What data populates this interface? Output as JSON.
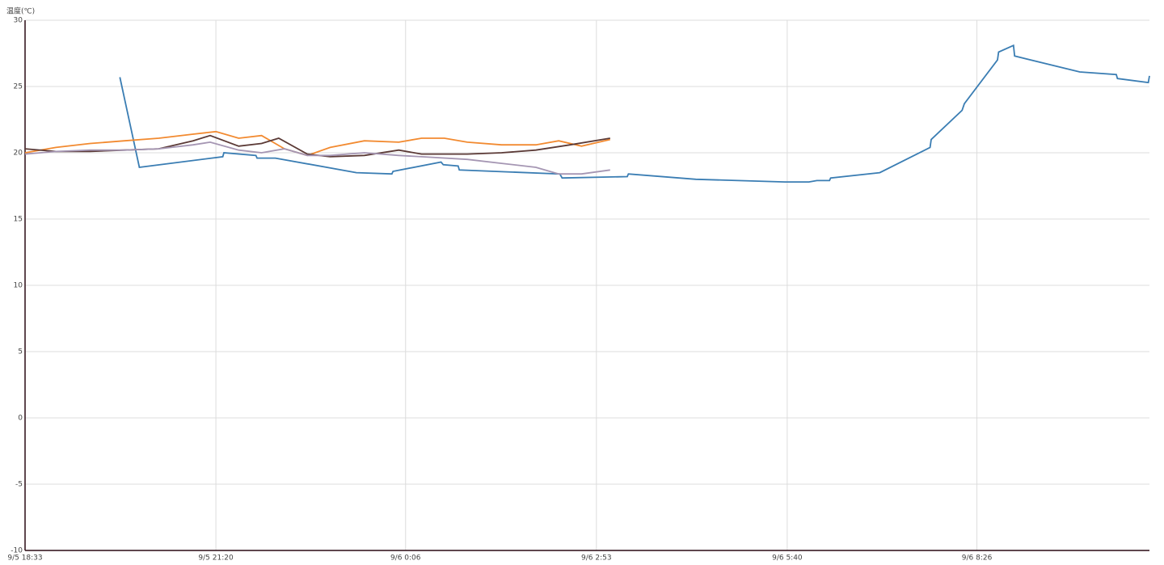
{
  "chart_data": {
    "type": "line",
    "y_label": "温度(℃)",
    "ylim": [
      -10,
      30
    ],
    "yticks": [
      -10,
      -5,
      0,
      5,
      10,
      15,
      20,
      25,
      30
    ],
    "xlim": [
      "9/5 18:33",
      "9/6 10:57"
    ],
    "xticks": [
      "9/5 18:33",
      "9/5 21:20",
      "9/6 0:06",
      "9/6 2:53",
      "9/6 5:40",
      "9/6 8:26"
    ],
    "grid": true,
    "series": [
      {
        "color": "#3a7db3",
        "x": [
          "9/5 19:56",
          "9/5 20:13",
          "9/5 21:26",
          "9/5 21:27",
          "9/5 21:55",
          "9/5 21:56",
          "9/5 22:12",
          "9/5 23:23",
          "9/5 23:54",
          "9/5 23:55",
          "9/6 0:37",
          "9/6 0:39",
          "9/6 0:52",
          "9/6 0:53",
          "9/6 2:21",
          "9/6 2:23",
          "9/6 3:20",
          "9/6 3:21",
          "9/6 4:20",
          "9/6 5:38",
          "9/6 5:59",
          "9/6 6:06",
          "9/6 6:17",
          "9/6 6:18",
          "9/6 7:01",
          "9/6 7:45",
          "9/6 7:46",
          "9/6 8:13",
          "9/6 8:15",
          "9/6 8:44",
          "9/6 8:45",
          "9/6 8:58",
          "9/6 8:59",
          "9/6 9:56",
          "9/6 10:28",
          "9/6 10:29",
          "9/6 10:56",
          "9/6 10:57"
        ],
        "values": [
          25.7,
          18.9,
          19.7,
          20.0,
          19.8,
          19.6,
          19.6,
          18.5,
          18.4,
          18.6,
          19.3,
          19.1,
          19.0,
          18.7,
          18.4,
          18.1,
          18.2,
          18.4,
          18.0,
          17.8,
          17.8,
          17.9,
          17.9,
          18.1,
          18.5,
          20.4,
          21.0,
          23.2,
          23.7,
          27.0,
          27.6,
          28.1,
          27.3,
          26.1,
          25.9,
          25.6,
          25.3,
          25.8
        ]
      },
      {
        "color": "#f28a30",
        "x": [
          "9/5 18:33",
          "9/5 19:00",
          "9/5 19:30",
          "9/5 20:00",
          "9/5 20:30",
          "9/5 21:00",
          "9/5 21:20",
          "9/5 21:40",
          "9/5 22:00",
          "9/5 22:20",
          "9/5 22:40",
          "9/5 23:00",
          "9/5 23:30",
          "9/6 0:00",
          "9/6 0:20",
          "9/6 0:40",
          "9/6 1:00",
          "9/6 1:30",
          "9/6 2:00",
          "9/6 2:20",
          "9/6 2:40",
          "9/6 3:05"
        ],
        "values": [
          20.0,
          20.4,
          20.7,
          20.9,
          21.1,
          21.4,
          21.6,
          21.1,
          21.3,
          20.3,
          19.8,
          20.4,
          20.9,
          20.8,
          21.1,
          21.1,
          20.8,
          20.6,
          20.6,
          20.9,
          20.5,
          21.0
        ]
      },
      {
        "color": "#5b3a36",
        "x": [
          "9/5 18:33",
          "9/5 19:00",
          "9/5 19:30",
          "9/5 20:00",
          "9/5 20:30",
          "9/5 21:00",
          "9/5 21:15",
          "9/5 21:40",
          "9/5 22:00",
          "9/5 22:15",
          "9/5 22:40",
          "9/5 23:00",
          "9/5 23:30",
          "9/6 0:00",
          "9/6 0:20",
          "9/6 1:00",
          "9/6 1:30",
          "9/6 2:00",
          "9/6 2:30",
          "9/6 3:05"
        ],
        "values": [
          20.3,
          20.1,
          20.1,
          20.2,
          20.3,
          20.9,
          21.3,
          20.5,
          20.7,
          21.1,
          19.9,
          19.7,
          19.8,
          20.2,
          19.9,
          19.9,
          20.0,
          20.2,
          20.6,
          21.1
        ]
      },
      {
        "color": "#a596b3",
        "x": [
          "9/5 18:33",
          "9/5 19:00",
          "9/5 19:30",
          "9/5 20:00",
          "9/5 20:30",
          "9/5 21:00",
          "9/5 21:15",
          "9/5 21:40",
          "9/5 22:00",
          "9/5 22:20",
          "9/5 22:40",
          "9/5 23:00",
          "9/5 23:30",
          "9/6 0:00",
          "9/6 0:20",
          "9/6 1:00",
          "9/6 1:30",
          "9/6 2:00",
          "9/6 2:20",
          "9/6 2:40",
          "9/6 3:05"
        ],
        "values": [
          19.9,
          20.1,
          20.2,
          20.2,
          20.3,
          20.6,
          20.8,
          20.2,
          20.0,
          20.3,
          19.8,
          19.8,
          20.0,
          19.8,
          19.7,
          19.5,
          19.2,
          18.9,
          18.4,
          18.4,
          18.7
        ]
      }
    ]
  }
}
